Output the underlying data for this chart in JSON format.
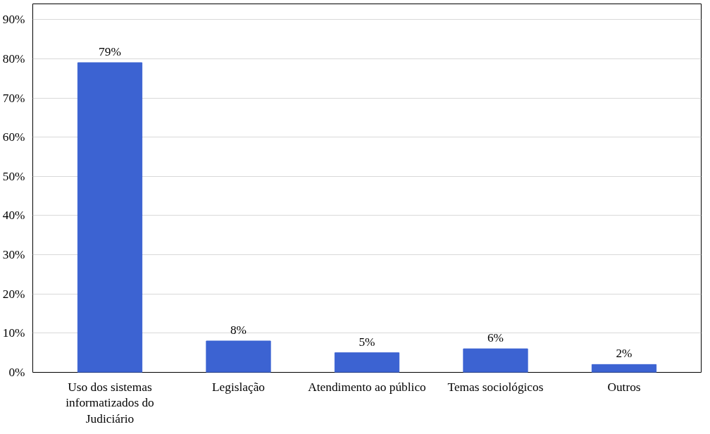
{
  "chart_data": {
    "type": "bar",
    "categories": [
      "Uso dos sistemas informatizados do Judiciário",
      "Legislação",
      "Atendimento ao público",
      "Temas sociológicos",
      "Outros"
    ],
    "values": [
      79,
      8,
      5,
      6,
      2
    ],
    "value_labels": [
      "79%",
      "8%",
      "5%",
      "6%",
      "2%"
    ],
    "color": "#3c63d2",
    "ylim": [
      0,
      94
    ],
    "yticks": [
      {
        "value": 0,
        "label": "0%"
      },
      {
        "value": 10,
        "label": "10%"
      },
      {
        "value": 20,
        "label": "20%"
      },
      {
        "value": 30,
        "label": "30%"
      },
      {
        "value": 40,
        "label": "40%"
      },
      {
        "value": 50,
        "label": "50%"
      },
      {
        "value": 60,
        "label": "60%"
      },
      {
        "value": 70,
        "label": "70%"
      },
      {
        "value": 80,
        "label": "80%"
      },
      {
        "value": 90,
        "label": "90%"
      }
    ],
    "grid": "y"
  }
}
